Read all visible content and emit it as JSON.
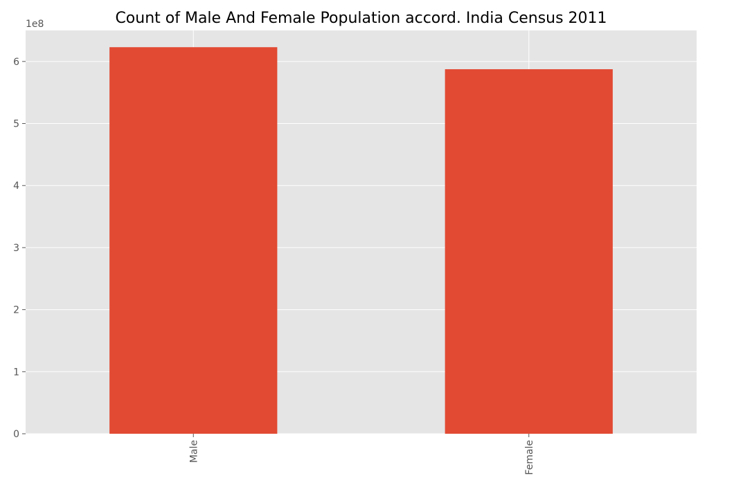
{
  "chart_data": {
    "type": "bar",
    "title": "Count of Male And Female Population accord. India Census 2011",
    "xlabel": "",
    "ylabel": "",
    "offset_label": "1e8",
    "categories": [
      "Male",
      "Female"
    ],
    "values": [
      623000000,
      587500000
    ],
    "ylim": [
      0,
      650000000
    ],
    "yticks": [
      0,
      100000000,
      200000000,
      300000000,
      400000000,
      500000000,
      600000000
    ],
    "ytick_labels": [
      "0",
      "1",
      "2",
      "3",
      "4",
      "5",
      "6"
    ],
    "grid": true,
    "legend": "none",
    "colors": {
      "bar": "#E24A33",
      "plot_bg": "#E5E5E5",
      "grid": "#FFFFFF",
      "tick_text": "#555555"
    }
  }
}
